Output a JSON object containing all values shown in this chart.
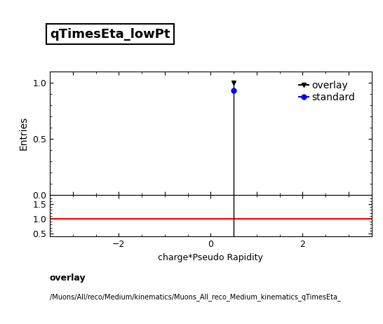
{
  "title": "qTimesEta_lowPt",
  "ylabel_main": "Entries",
  "xlabel": "charge*Pseudo Rapidity",
  "xlim": [
    -3.5,
    3.5
  ],
  "ylim_main": [
    0,
    1.1
  ],
  "ylim_ratio": [
    0.4,
    1.8
  ],
  "ratio_yticks": [
    0.5,
    1.0,
    1.5
  ],
  "main_yticks": [
    0,
    0.5,
    1.0
  ],
  "spike_x": 0.5,
  "overlay_color": "#000000",
  "standard_color": "#0000ff",
  "ratio_line_color": "#ff0000",
  "label_overlay": "overlay",
  "label_standard": "standard",
  "footer_line1": "overlay",
  "footer_line2": "/Muons/All/reco/Medium/kinematics/Muons_All_reco_Medium_kinematics_qTimesEta_",
  "background_color": "#ffffff",
  "title_fontsize": 13,
  "axis_fontsize": 10,
  "legend_fontsize": 10,
  "tick_label_fontsize": 9
}
